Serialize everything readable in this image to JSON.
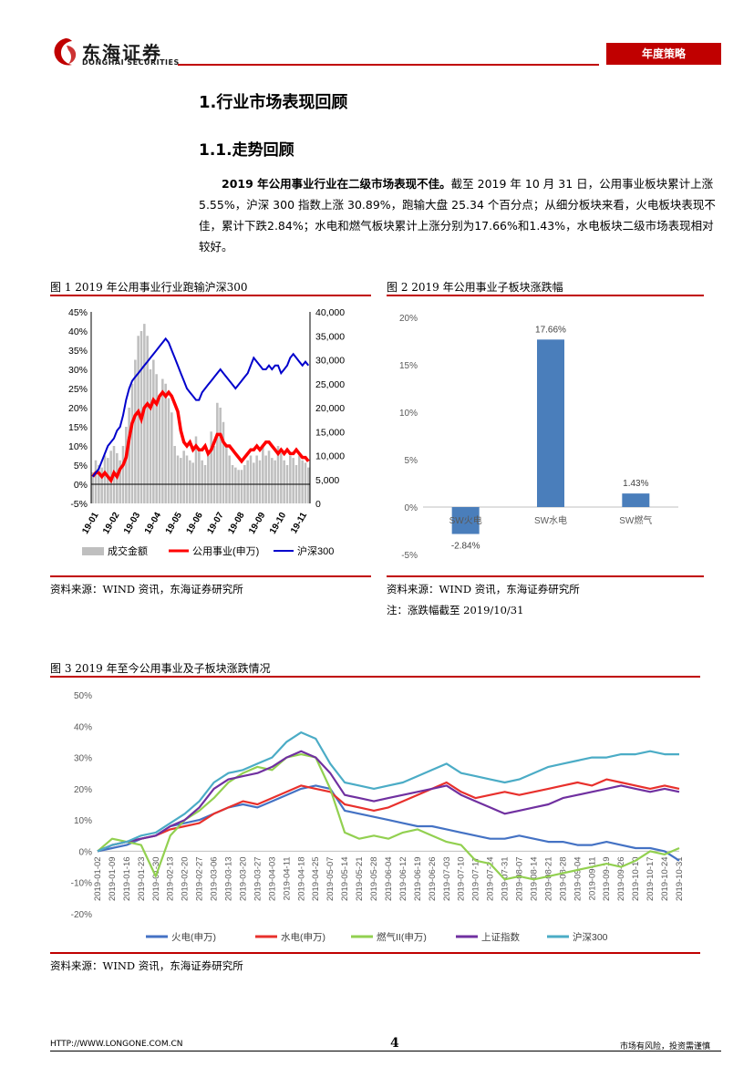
{
  "header": {
    "brand_cn": "东海证券",
    "brand_en": "DONGHAI SECURITIES",
    "tag": "年度策略"
  },
  "section": {
    "title": "1.行业市场表现回顾",
    "subtitle": "1.1.走势回顾",
    "para_bold": "2019 年公用事业行业在二级市场表现不佳。",
    "para_rest": "截至 2019 年 10 月 31 日，公用事业板块累计上涨 5.55%，沪深 300 指数上涨 30.89%，跑输大盘 25.34 个百分点；从细分板块来看，火电板块表现不佳，累计下跌2.84%；水电和燃气板块累计上涨分别为17.66%和1.43%，水电板块二级市场表现相对较好。"
  },
  "figure1": {
    "title": "图 1 2019 年公用事业行业跑输沪深300",
    "source": "资料来源：WIND 资讯，东海证券研究所",
    "chart_data": {
      "type": "bar+line",
      "x_ticks": [
        "19-01",
        "19-02",
        "19-03",
        "19-04",
        "19-05",
        "19-06",
        "19-07",
        "19-08",
        "19-09",
        "19-10",
        "19-11"
      ],
      "y_left_ticks": [
        "45%",
        "40%",
        "35%",
        "30%",
        "25%",
        "20%",
        "15%",
        "10%",
        "5%",
        "0%",
        "-5%"
      ],
      "y_right_ticks": [
        "40,000",
        "35,000",
        "30,000",
        "25,000",
        "20,000",
        "15,000",
        "10,000",
        "5,000",
        "0"
      ],
      "ylim_left": [
        -5,
        45
      ],
      "ylim_right": [
        0,
        40000
      ],
      "legend": [
        "成交金额",
        "公用事业(申万)",
        "沪深300"
      ],
      "colors": {
        "bar": "#bfbfbf",
        "utility": "#ff0000",
        "csi300": "#0000cc"
      },
      "turnover": [
        6500,
        9000,
        8000,
        7500,
        10000,
        9500,
        11000,
        12000,
        10500,
        9000,
        12000,
        16000,
        20000,
        25000,
        30000,
        35000,
        36000,
        37500,
        35000,
        28000,
        30000,
        27000,
        22000,
        26000,
        25000,
        22000,
        19000,
        12000,
        10000,
        9500,
        11000,
        10000,
        9000,
        8500,
        14000,
        11000,
        9000,
        8000,
        10000,
        15000,
        12000,
        21000,
        20000,
        17000,
        12000,
        10000,
        8000,
        7500,
        7000,
        7000,
        8000,
        9000,
        10000,
        8500,
        10000,
        9000,
        12000,
        10000,
        11000,
        9500,
        9000,
        12000,
        10500,
        9000,
        8000,
        10000,
        9500,
        8000,
        10000,
        9000,
        8500,
        7500
      ],
      "utility_pct": [
        2,
        3,
        3,
        2,
        3,
        2,
        1,
        3,
        2,
        4,
        5,
        7,
        12,
        16,
        18,
        19,
        17,
        20,
        21,
        20,
        22,
        21,
        23,
        24,
        23,
        24,
        23,
        21,
        19,
        14,
        11,
        10,
        11,
        9,
        10,
        9,
        9,
        10,
        8,
        9,
        11,
        13,
        13,
        11,
        10,
        10,
        9,
        8,
        7,
        6,
        7,
        8,
        9,
        9,
        10,
        9,
        10,
        11,
        11,
        10,
        9,
        8,
        9,
        8,
        9,
        8,
        8,
        9,
        8,
        7,
        7,
        6
      ],
      "csi300_pct": [
        2,
        3,
        4,
        6,
        8,
        10,
        11,
        12,
        14,
        15,
        18,
        22,
        25,
        27,
        28,
        29,
        30,
        31,
        32,
        33,
        34,
        35,
        36,
        37,
        38,
        37,
        35,
        33,
        31,
        29,
        27,
        25,
        24,
        23,
        22,
        22,
        24,
        25,
        26,
        27,
        28,
        29,
        30,
        29,
        28,
        27,
        26,
        25,
        26,
        27,
        28,
        29,
        31,
        33,
        32,
        31,
        30,
        30,
        31,
        30,
        31,
        31,
        29,
        30,
        31,
        33,
        34,
        33,
        32,
        31,
        32,
        31
      ]
    }
  },
  "figure2": {
    "title": "图 2 2019 年公用事业子板块涨跌幅",
    "source": "资料来源：WIND 资讯，东海证券研究所",
    "note": "注：涨跌幅截至 2019/10/31",
    "chart_data": {
      "type": "bar",
      "categories": [
        "SW火电",
        "SW水电",
        "SW燃气"
      ],
      "values": [
        -2.84,
        17.66,
        1.43
      ],
      "value_labels": [
        "-2.84%",
        "17.66%",
        "1.43%"
      ],
      "y_ticks": [
        "20%",
        "15%",
        "10%",
        "5%",
        "0%",
        "-5%"
      ],
      "ylim": [
        -5,
        20
      ],
      "color": "#4a7ebb"
    }
  },
  "figure3": {
    "title": "图 3 2019 年至今公用事业及子板块涨跌情况",
    "source": "资料来源：WIND 资讯，东海证券研究所",
    "chart_data": {
      "type": "line",
      "y_ticks": [
        "50%",
        "40%",
        "30%",
        "20%",
        "10%",
        "0%",
        "-10%",
        "-20%"
      ],
      "ylim": [
        -20,
        50
      ],
      "x_ticks": [
        "2019-01-02",
        "2019-01-09",
        "2019-01-16",
        "2019-01-23",
        "2019-01-30",
        "2019-02-13",
        "2019-02-20",
        "2019-02-27",
        "2019-03-06",
        "2019-03-13",
        "2019-03-20",
        "2019-03-27",
        "2019-04-03",
        "2019-04-11",
        "2019-04-18",
        "2019-04-25",
        "2019-05-07",
        "2019-05-14",
        "2019-05-21",
        "2019-05-28",
        "2019-06-04",
        "2019-06-12",
        "2019-06-19",
        "2019-06-26",
        "2019-07-03",
        "2019-07-10",
        "2019-07-17",
        "2019-07-24",
        "2019-07-31",
        "2019-08-07",
        "2019-08-14",
        "2019-08-21",
        "2019-08-28",
        "2019-09-04",
        "2019-09-11",
        "2019-09-19",
        "2019-09-26",
        "2019-10-10",
        "2019-10-17",
        "2019-10-24",
        "2019-10-31"
      ],
      "series": [
        {
          "name": "火电(申万)",
          "color": "#4472c4",
          "values": [
            0,
            1,
            2,
            4,
            5,
            8,
            9,
            10,
            12,
            14,
            15,
            14,
            16,
            18,
            20,
            21,
            20,
            13,
            12,
            11,
            10,
            9,
            8,
            8,
            7,
            6,
            5,
            4,
            4,
            5,
            4,
            3,
            3,
            2,
            2,
            3,
            2,
            1,
            1,
            0,
            -3
          ]
        },
        {
          "name": "水电(申万)",
          "color": "#e8302c",
          "values": [
            0,
            2,
            3,
            4,
            5,
            7,
            8,
            9,
            12,
            14,
            16,
            15,
            17,
            19,
            21,
            20,
            19,
            15,
            14,
            13,
            14,
            16,
            18,
            20,
            22,
            19,
            17,
            18,
            19,
            18,
            19,
            20,
            21,
            22,
            21,
            23,
            22,
            21,
            20,
            21,
            20
          ]
        },
        {
          "name": "燃气II(申万)",
          "color": "#92d050",
          "values": [
            0,
            4,
            3,
            2,
            -8,
            5,
            10,
            13,
            17,
            22,
            25,
            27,
            26,
            30,
            31,
            30,
            20,
            6,
            4,
            5,
            4,
            6,
            7,
            5,
            3,
            2,
            -3,
            -4,
            -9,
            -8,
            -9,
            -8,
            -7,
            -6,
            -5,
            -4,
            -5,
            -3,
            0,
            -1,
            1
          ]
        },
        {
          "name": "上证指数",
          "color": "#7030a0",
          "values": [
            0,
            2,
            3,
            4,
            5,
            8,
            10,
            14,
            20,
            23,
            24,
            25,
            27,
            30,
            32,
            30,
            25,
            18,
            17,
            16,
            17,
            18,
            19,
            20,
            21,
            18,
            16,
            14,
            12,
            13,
            14,
            15,
            17,
            18,
            19,
            20,
            21,
            20,
            19,
            20,
            19
          ]
        },
        {
          "name": "沪深300",
          "color": "#4bacc6",
          "values": [
            0,
            2,
            3,
            5,
            6,
            9,
            12,
            16,
            22,
            25,
            26,
            28,
            30,
            35,
            38,
            36,
            28,
            22,
            21,
            20,
            21,
            22,
            24,
            26,
            28,
            25,
            24,
            23,
            22,
            23,
            25,
            27,
            28,
            29,
            30,
            30,
            31,
            31,
            32,
            31,
            31
          ]
        }
      ]
    }
  },
  "footer": {
    "url": "HTTP://WWW.LONGONE.COM.CN",
    "page": "4",
    "note": "市场有风险，投资需谨慎"
  }
}
